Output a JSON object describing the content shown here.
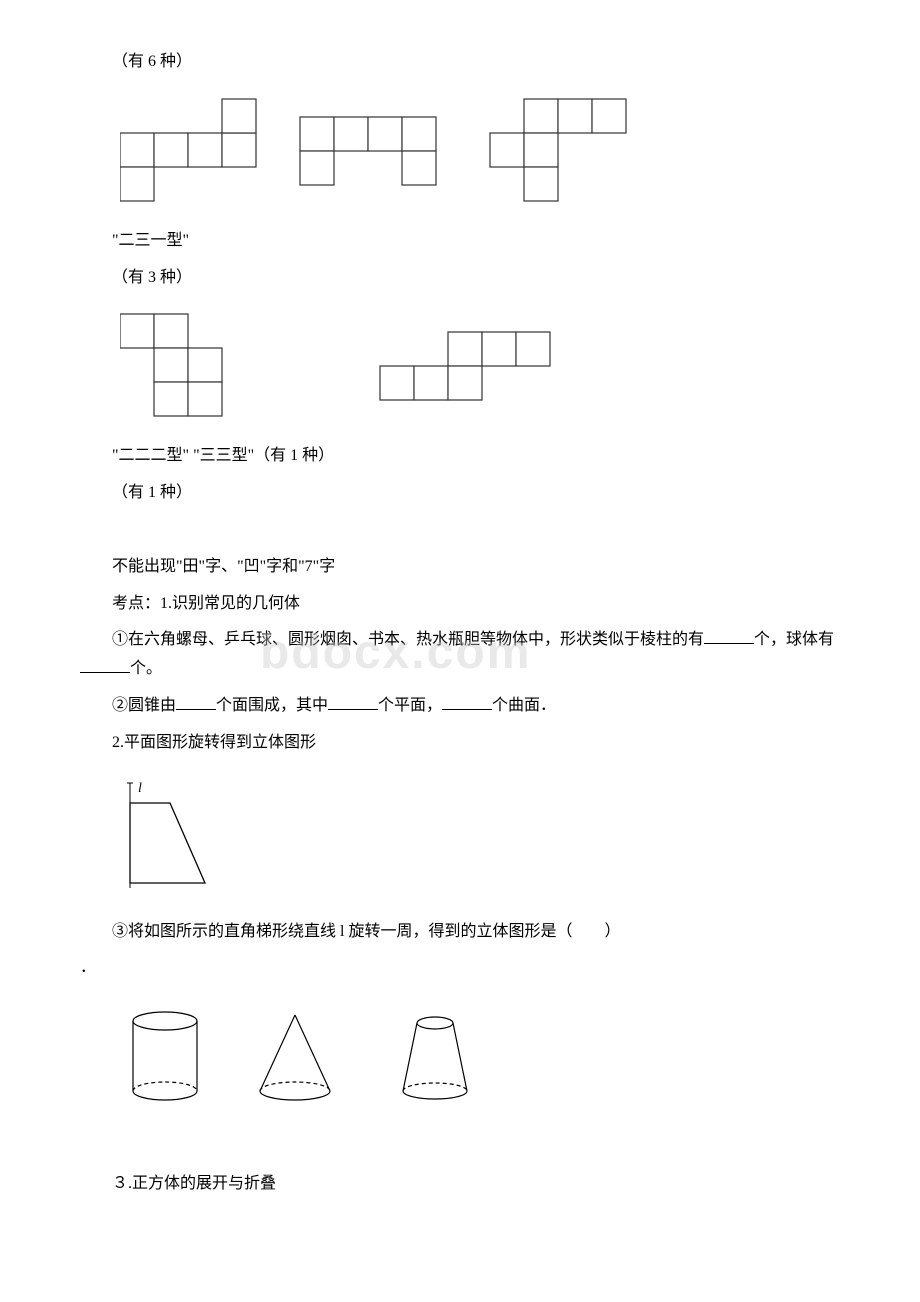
{
  "lines": {
    "l1": "（有 6 种）",
    "l2": "\"二三一型\"",
    "l3": "（有 3 种）",
    "l4": "\"二二二型\" \"三三型\"（有 1 种）",
    "l5": "（有 1 种）",
    "l6": "不能出现\"田\"字、\"凹\"字和\"7\"字",
    "l7_pre": "考点：1.识别常见的几何体",
    "l8_a": "①在六角螺母、乒乓球、圆形烟囱、书本、热水瓶胆等物体中，形状类似于棱柱的有",
    "l8_b": "个，球体有",
    "l8_c": "个。",
    "l9_a": "②圆锥由",
    "l9_b": "个面围成，其中",
    "l9_c": "个平面，",
    "l9_d": "个曲面．",
    "l10": "2.平面图形旋转得到立体图形",
    "l11": "③将如图所示的直角梯形绕直线 l 旋转一周，得到的立体图形是（　　）",
    "l12": "．",
    "l13": "３.正方体的展开与折叠"
  },
  "watermark": "bdocx.com",
  "trapezoid_label": "l",
  "nets_row1": {
    "cell": 34,
    "stroke": "#333333",
    "fill": "#ffffff",
    "netA": [
      [
        1,
        0
      ],
      [
        1,
        1
      ],
      [
        1,
        2
      ],
      [
        1,
        3
      ],
      [
        0,
        3
      ],
      [
        2,
        0
      ]
    ],
    "netB": [
      [
        0,
        0
      ],
      [
        0,
        1
      ],
      [
        0,
        2
      ],
      [
        0,
        3
      ],
      [
        1,
        0
      ],
      [
        1,
        3
      ]
    ],
    "netC": [
      [
        0,
        1
      ],
      [
        0,
        2
      ],
      [
        0,
        3
      ],
      [
        1,
        0
      ],
      [
        1,
        1
      ],
      [
        2,
        1
      ]
    ]
  },
  "nets_row2": {
    "cell": 34,
    "stroke": "#333333",
    "fill": "#ffffff",
    "netD": [
      [
        0,
        0
      ],
      [
        0,
        1
      ],
      [
        1,
        1
      ],
      [
        1,
        2
      ],
      [
        2,
        1
      ],
      [
        2,
        2
      ]
    ],
    "netE": [
      [
        0,
        2
      ],
      [
        0,
        3
      ],
      [
        1,
        0
      ],
      [
        1,
        1
      ],
      [
        1,
        2
      ],
      [
        0,
        4
      ]
    ]
  },
  "trapezoid": {
    "stroke": "#000000",
    "width": 90,
    "height": 110
  },
  "solids": {
    "stroke": "#000000",
    "dash": "4,3"
  }
}
